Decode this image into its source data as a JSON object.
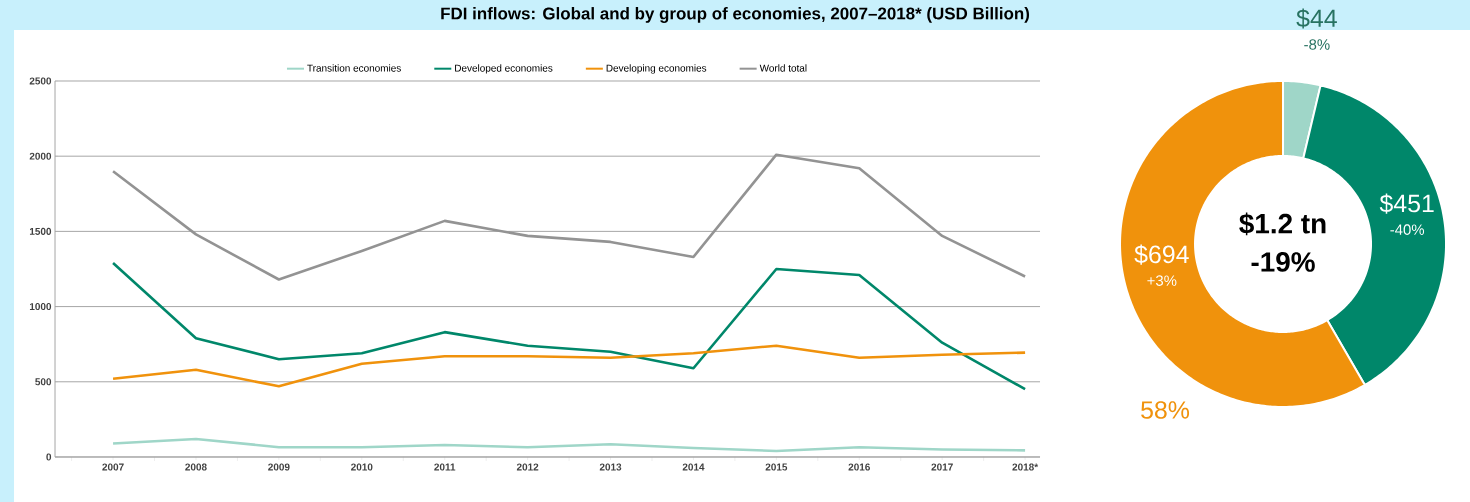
{
  "chart_data": [
    {
      "type": "line",
      "title": "FDI inflows: Global and by group of economies, 2007–2018* (USD Billion)",
      "categories": [
        "2007",
        "2008",
        "2009",
        "2010",
        "2011",
        "2012",
        "2013",
        "2014",
        "2015",
        "2016",
        "2017",
        "2018*"
      ],
      "series": [
        {
          "name": "Transition economies",
          "color": "#9fd6c8",
          "values": [
            90,
            120,
            65,
            65,
            80,
            65,
            85,
            60,
            40,
            65,
            50,
            44
          ]
        },
        {
          "name": "Developed economies",
          "color": "#00876a",
          "values": [
            1290,
            790,
            650,
            690,
            830,
            740,
            700,
            590,
            1250,
            1210,
            760,
            451
          ]
        },
        {
          "name": "Developing economies",
          "color": "#f0920c",
          "values": [
            520,
            580,
            470,
            620,
            670,
            670,
            660,
            690,
            740,
            660,
            680,
            694
          ]
        },
        {
          "name": "World total",
          "color": "#939393",
          "values": [
            1900,
            1480,
            1180,
            1370,
            1570,
            1470,
            1430,
            1330,
            2010,
            1920,
            1470,
            1200
          ]
        }
      ],
      "ylim": [
        0,
        2500
      ],
      "yticks": [
        0,
        500,
        1000,
        1500,
        2000,
        2500
      ],
      "grid": "y",
      "legend": "top",
      "marker": "none",
      "line_style": "solid"
    },
    {
      "type": "donut",
      "categories": [
        null,
        null,
        null
      ],
      "values": [
        44,
        451,
        694
      ],
      "colors": [
        "#9fd6c8",
        "#00876a",
        "#f0920c"
      ],
      "value_labels": [
        "$44",
        "$451",
        "$694"
      ],
      "annotations": [
        "-8%",
        "-40%",
        "+3%",
        "$1.2 tn",
        "-19%",
        "58%"
      ]
    }
  ]
}
